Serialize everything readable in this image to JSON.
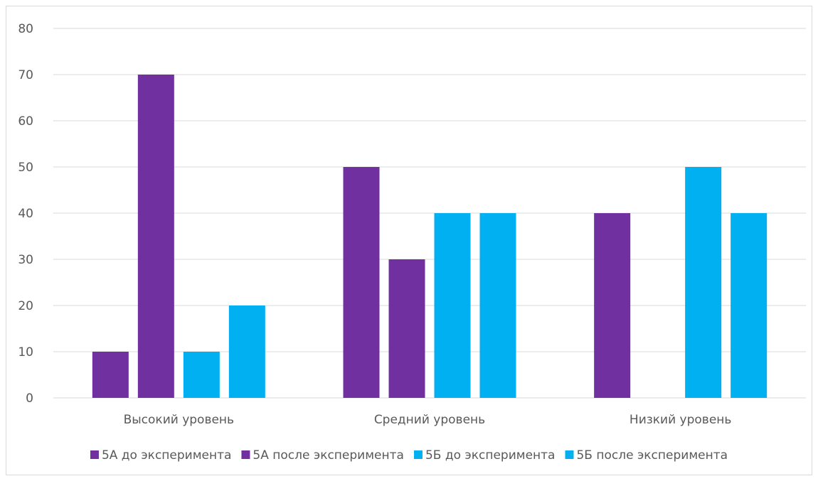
{
  "chart_data": {
    "type": "bar",
    "title": "",
    "xlabel": "",
    "ylabel": "",
    "categories": [
      "Высокий уровень",
      "Средний уровень",
      "Низкий уровень"
    ],
    "series": [
      {
        "name": "5А до эксперимента",
        "color": "#7030a0",
        "values": [
          10,
          50,
          40
        ]
      },
      {
        "name": "5А после эксперимента",
        "color": "#7030a0",
        "values": [
          70,
          30,
          0
        ]
      },
      {
        "name": "5Б до эксперимента",
        "color": "#00b0f0",
        "values": [
          10,
          40,
          50
        ]
      },
      {
        "name": "5Б после эксперимента",
        "color": "#00b0f0",
        "values": [
          20,
          40,
          40
        ]
      }
    ],
    "ylim": [
      0,
      80
    ],
    "yticks": [
      0,
      10,
      20,
      30,
      40,
      50,
      60,
      70,
      80
    ],
    "grid": true,
    "legend": "bottom"
  },
  "colors": {
    "gridline": "#d9d9d9",
    "text": "#595959"
  }
}
